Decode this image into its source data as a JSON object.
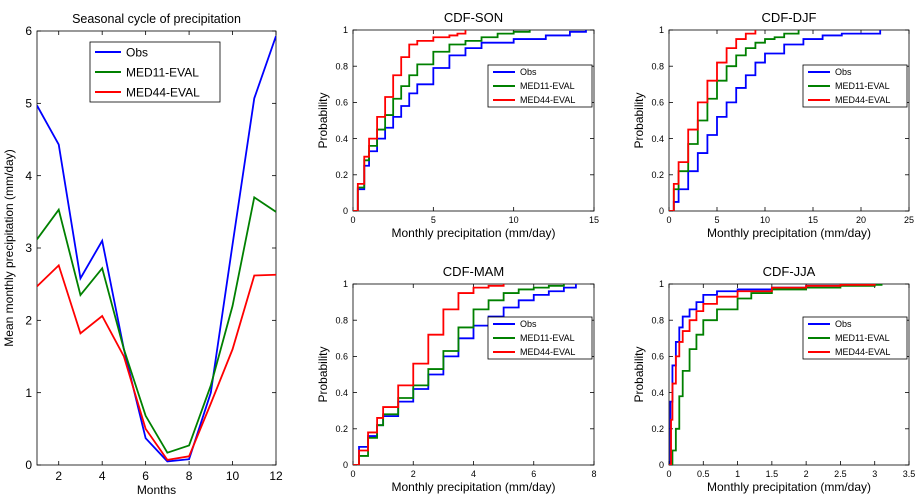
{
  "colors": {
    "obs": "#0000ff",
    "med11": "#008000",
    "med44": "#ff0000",
    "axis": "#000000",
    "background": "#ffffff"
  },
  "chart_data": [
    {
      "id": "seasonal",
      "type": "line",
      "title": "Seasonal cycle of precipitation",
      "xlabel": "Months",
      "ylabel": "Mean monthly precipitation (mm/day)",
      "xlim": [
        1,
        12
      ],
      "ylim": [
        0,
        6
      ],
      "xticks": [
        2,
        4,
        6,
        8,
        10,
        12
      ],
      "yticks": [
        0,
        1,
        2,
        3,
        4,
        5,
        6
      ],
      "legend": "top-center",
      "x": [
        1,
        2,
        3,
        4,
        5,
        6,
        7,
        8,
        9,
        10,
        11,
        12
      ],
      "series": [
        {
          "name": "Obs",
          "color_key": "obs",
          "values": [
            4.97,
            4.43,
            2.58,
            3.1,
            1.6,
            0.37,
            0.05,
            0.08,
            1.0,
            3.05,
            5.07,
            5.93
          ]
        },
        {
          "name": "MED11-EVAL",
          "color_key": "med11",
          "values": [
            3.12,
            3.53,
            2.35,
            2.72,
            1.6,
            0.68,
            0.17,
            0.27,
            1.1,
            2.2,
            3.7,
            3.5
          ]
        },
        {
          "name": "MED44-EVAL",
          "color_key": "med44",
          "values": [
            2.47,
            2.76,
            1.82,
            2.06,
            1.5,
            0.5,
            0.07,
            0.12,
            0.85,
            1.6,
            2.62,
            2.63
          ]
        }
      ]
    },
    {
      "id": "cdf-son",
      "type": "line",
      "title": "CDF-SON",
      "xlabel": "Monthly precipitation (mm/day)",
      "ylabel": "Probability",
      "xlim": [
        0,
        15
      ],
      "ylim": [
        0,
        1
      ],
      "xticks": [
        0,
        5,
        10,
        15
      ],
      "yticks": [
        0,
        0.2,
        0.4,
        0.6,
        0.8,
        1
      ],
      "legend": "right",
      "series": [
        {
          "name": "Obs",
          "color_key": "obs",
          "x": [
            0,
            0.3,
            0.7,
            1.0,
            1.5,
            2.0,
            2.5,
            3.0,
            3.5,
            4.0,
            5.0,
            6.0,
            7.0,
            8.0,
            10.0,
            12.0,
            13.5,
            14.5
          ],
          "values": [
            0,
            0.12,
            0.25,
            0.33,
            0.4,
            0.46,
            0.52,
            0.58,
            0.65,
            0.7,
            0.79,
            0.86,
            0.9,
            0.93,
            0.95,
            0.97,
            0.99,
            1.0
          ]
        },
        {
          "name": "MED11-EVAL",
          "color_key": "med11",
          "x": [
            0,
            0.3,
            0.7,
            1.0,
            1.5,
            2.0,
            2.5,
            3.0,
            3.5,
            4.0,
            5.0,
            6.0,
            7.0,
            8.0,
            9.0,
            10.0,
            11.0
          ],
          "values": [
            0,
            0.13,
            0.28,
            0.36,
            0.45,
            0.53,
            0.62,
            0.69,
            0.75,
            0.81,
            0.88,
            0.92,
            0.94,
            0.96,
            0.98,
            0.99,
            1.0
          ]
        },
        {
          "name": "MED44-EVAL",
          "color_key": "med44",
          "x": [
            0,
            0.3,
            0.7,
            1.0,
            1.5,
            2.0,
            2.5,
            3.0,
            3.5,
            4.0,
            5.0,
            6.0,
            6.5,
            7.0
          ],
          "values": [
            0,
            0.15,
            0.3,
            0.4,
            0.52,
            0.63,
            0.75,
            0.85,
            0.92,
            0.94,
            0.96,
            0.97,
            0.98,
            1.0
          ]
        }
      ]
    },
    {
      "id": "cdf-djf",
      "type": "line",
      "title": "CDF-DJF",
      "xlabel": "Monthly precipitation (mm/day)",
      "ylabel": "Probability",
      "xlim": [
        0,
        25
      ],
      "ylim": [
        0,
        1
      ],
      "xticks": [
        0,
        5,
        10,
        15,
        20,
        25
      ],
      "yticks": [
        0,
        0.2,
        0.4,
        0.6,
        0.8,
        1
      ],
      "legend": "right",
      "series": [
        {
          "name": "Obs",
          "color_key": "obs",
          "x": [
            0,
            0.5,
            1,
            2,
            3,
            4,
            5,
            6,
            7,
            8,
            9,
            10,
            12,
            14,
            16,
            18,
            20,
            22
          ],
          "values": [
            0,
            0.05,
            0.12,
            0.22,
            0.32,
            0.42,
            0.52,
            0.6,
            0.68,
            0.75,
            0.82,
            0.87,
            0.92,
            0.95,
            0.97,
            0.98,
            0.98,
            1.0
          ]
        },
        {
          "name": "MED11-EVAL",
          "color_key": "med11",
          "x": [
            0,
            0.5,
            1,
            2,
            3,
            4,
            5,
            6,
            7,
            8,
            9,
            10,
            11,
            12,
            13.5
          ],
          "values": [
            0,
            0.12,
            0.22,
            0.37,
            0.5,
            0.62,
            0.72,
            0.8,
            0.86,
            0.9,
            0.93,
            0.95,
            0.96,
            0.98,
            1.0
          ]
        },
        {
          "name": "MED44-EVAL",
          "color_key": "med44",
          "x": [
            0,
            0.5,
            1,
            2,
            3,
            4,
            5,
            6,
            7,
            8,
            9
          ],
          "values": [
            0,
            0.15,
            0.27,
            0.45,
            0.6,
            0.72,
            0.82,
            0.9,
            0.95,
            0.98,
            1.0
          ]
        }
      ]
    },
    {
      "id": "cdf-mam",
      "type": "line",
      "title": "CDF-MAM",
      "xlabel": "Monthly precipitation (mm/day)",
      "ylabel": "Probability",
      "xlim": [
        0,
        8
      ],
      "ylim": [
        0,
        1
      ],
      "xticks": [
        0,
        2,
        4,
        6,
        8
      ],
      "yticks": [
        0,
        0.2,
        0.4,
        0.6,
        0.8,
        1
      ],
      "legend": "right",
      "series": [
        {
          "name": "Obs",
          "color_key": "obs",
          "x": [
            0,
            0.2,
            0.5,
            0.8,
            1.0,
            1.5,
            2.0,
            2.5,
            3.0,
            3.5,
            4.0,
            4.5,
            5.0,
            5.5,
            6.0,
            6.5,
            7.0,
            7.4
          ],
          "values": [
            0,
            0.1,
            0.16,
            0.22,
            0.27,
            0.35,
            0.42,
            0.5,
            0.6,
            0.7,
            0.77,
            0.82,
            0.87,
            0.91,
            0.94,
            0.96,
            0.98,
            1.0
          ]
        },
        {
          "name": "MED11-EVAL",
          "color_key": "med11",
          "x": [
            0,
            0.2,
            0.5,
            0.8,
            1.0,
            1.5,
            2.0,
            2.5,
            3.0,
            3.5,
            4.0,
            4.5,
            5.0,
            5.5,
            6.0,
            6.5,
            7.0
          ],
          "values": [
            0,
            0.05,
            0.15,
            0.22,
            0.28,
            0.37,
            0.44,
            0.53,
            0.63,
            0.76,
            0.86,
            0.91,
            0.95,
            0.97,
            0.98,
            0.99,
            1.0
          ]
        },
        {
          "name": "MED44-EVAL",
          "color_key": "med44",
          "x": [
            0,
            0.2,
            0.5,
            0.8,
            1.0,
            1.5,
            2.0,
            2.5,
            3.0,
            3.5,
            4.0,
            4.5,
            5.0
          ],
          "values": [
            0,
            0.08,
            0.18,
            0.26,
            0.32,
            0.44,
            0.56,
            0.72,
            0.86,
            0.95,
            0.98,
            0.99,
            1.0
          ]
        }
      ]
    },
    {
      "id": "cdf-jja",
      "type": "line",
      "title": "CDF-JJA",
      "xlabel": "Monthly precipitation (mm/day)",
      "ylabel": "Probability",
      "xlim": [
        0,
        3.5
      ],
      "ylim": [
        0,
        1
      ],
      "xticks": [
        0,
        0.5,
        1,
        1.5,
        2,
        2.5,
        3,
        3.5
      ],
      "yticks": [
        0,
        0.2,
        0.4,
        0.6,
        0.8,
        1
      ],
      "legend": "right",
      "series": [
        {
          "name": "Obs",
          "color_key": "obs",
          "x": [
            0,
            0.02,
            0.05,
            0.1,
            0.15,
            0.2,
            0.3,
            0.4,
            0.5,
            0.7,
            1.0,
            1.5,
            2.0,
            2.5,
            3.0
          ],
          "values": [
            0,
            0.35,
            0.55,
            0.68,
            0.76,
            0.82,
            0.86,
            0.9,
            0.94,
            0.96,
            0.97,
            0.98,
            0.99,
            0.995,
            1.0
          ]
        },
        {
          "name": "MED11-EVAL",
          "color_key": "med11",
          "x": [
            0,
            0.05,
            0.1,
            0.15,
            0.2,
            0.3,
            0.4,
            0.5,
            0.7,
            1.0,
            1.2,
            1.5,
            2.0,
            2.5,
            3.0,
            3.1
          ],
          "values": [
            0,
            0.08,
            0.2,
            0.38,
            0.52,
            0.64,
            0.72,
            0.8,
            0.86,
            0.92,
            0.95,
            0.97,
            0.98,
            0.99,
            0.995,
            1.0
          ]
        },
        {
          "name": "MED44-EVAL",
          "color_key": "med44",
          "x": [
            0,
            0.03,
            0.05,
            0.1,
            0.15,
            0.2,
            0.3,
            0.4,
            0.5,
            0.7,
            1.0,
            1.5,
            2.0,
            2.5,
            3.0
          ],
          "values": [
            0,
            0.25,
            0.45,
            0.6,
            0.68,
            0.74,
            0.8,
            0.85,
            0.89,
            0.93,
            0.96,
            0.98,
            0.99,
            0.995,
            1.0
          ]
        }
      ]
    }
  ]
}
